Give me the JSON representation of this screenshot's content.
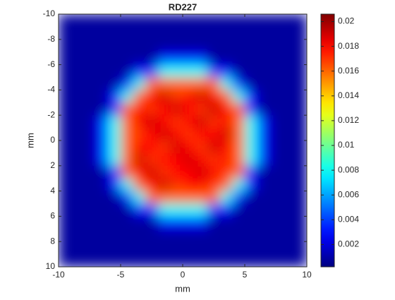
{
  "chart_data": {
    "type": "heatmap",
    "title": "RD227",
    "xlabel": "mm",
    "ylabel": "mm",
    "xlim": [
      -10,
      10
    ],
    "ylim": [
      -10,
      10
    ],
    "y_reversed": true,
    "xticks": [
      -10,
      -5,
      0,
      5,
      10
    ],
    "yticks": [
      -10,
      -8,
      -6,
      -4,
      -2,
      0,
      2,
      4,
      6,
      8,
      10
    ],
    "colormap": "jet",
    "clim": [
      0.0002,
      0.0206
    ],
    "cticks": [
      0.002,
      0.004,
      0.006,
      0.008,
      0.01,
      0.012,
      0.014,
      0.016,
      0.018,
      0.02
    ],
    "z": [
      [
        0.0008,
        0.0008,
        0.0008,
        0.0008,
        0.0008,
        0.0008,
        0.0008,
        0.0008,
        0.0008,
        0.0008,
        0.0008,
        0.0008,
        0.0008,
        0.0008,
        0.0008,
        0.0008,
        0.0008,
        0.0008,
        0.0008,
        0.0008
      ],
      [
        0.0008,
        0.0008,
        0.0008,
        0.0008,
        0.0008,
        0.0008,
        0.0008,
        0.0008,
        0.0008,
        0.0008,
        0.0008,
        0.0008,
        0.0008,
        0.0008,
        0.0008,
        0.0008,
        0.0008,
        0.0008,
        0.0008,
        0.0008
      ],
      [
        0.0008,
        0.0008,
        0.0008,
        0.0008,
        0.0008,
        0.0008,
        0.0008,
        0.0008,
        0.0008,
        0.0008,
        0.0008,
        0.0008,
        0.0008,
        0.0008,
        0.0008,
        0.0008,
        0.0008,
        0.0008,
        0.0008,
        0.0008
      ],
      [
        0.0008,
        0.0008,
        0.0008,
        0.0008,
        0.0008,
        0.0008,
        0.0008,
        0.0008,
        0.003,
        0.003,
        0.003,
        0.003,
        0.0008,
        0.0008,
        0.0008,
        0.0008,
        0.0008,
        0.0008,
        0.0008,
        0.0008
      ],
      [
        0.0008,
        0.0008,
        0.0008,
        0.0008,
        0.0008,
        0.0008,
        0.003,
        0.003,
        0.008,
        0.008,
        0.008,
        0.008,
        0.003,
        0.003,
        0.0008,
        0.0008,
        0.0008,
        0.0008,
        0.0008,
        0.0008
      ],
      [
        0.0008,
        0.0008,
        0.0008,
        0.0008,
        0.0008,
        0.003,
        0.008,
        0.016,
        0.016,
        0.016,
        0.016,
        0.016,
        0.016,
        0.008,
        0.003,
        0.0008,
        0.0008,
        0.0008,
        0.0008,
        0.0008
      ],
      [
        0.0008,
        0.0008,
        0.0008,
        0.0008,
        0.003,
        0.008,
        0.016,
        0.018,
        0.019,
        0.017,
        0.018,
        0.019,
        0.018,
        0.016,
        0.008,
        0.003,
        0.0008,
        0.0008,
        0.0008,
        0.0008
      ],
      [
        0.0008,
        0.0008,
        0.0008,
        0.0008,
        0.003,
        0.016,
        0.018,
        0.017,
        0.018,
        0.019,
        0.018,
        0.017,
        0.019,
        0.018,
        0.016,
        0.003,
        0.0008,
        0.0008,
        0.0008,
        0.0008
      ],
      [
        0.0008,
        0.0008,
        0.0008,
        0.003,
        0.008,
        0.016,
        0.018,
        0.019,
        0.018,
        0.017,
        0.018,
        0.019,
        0.017,
        0.018,
        0.016,
        0.008,
        0.003,
        0.0008,
        0.0008,
        0.0008
      ],
      [
        0.0008,
        0.0008,
        0.0008,
        0.003,
        0.008,
        0.016,
        0.017,
        0.018,
        0.019,
        0.018,
        0.017,
        0.018,
        0.018,
        0.019,
        0.016,
        0.008,
        0.003,
        0.0008,
        0.0008,
        0.0008
      ],
      [
        0.0008,
        0.0008,
        0.0008,
        0.003,
        0.008,
        0.016,
        0.018,
        0.018,
        0.017,
        0.019,
        0.018,
        0.017,
        0.019,
        0.018,
        0.016,
        0.008,
        0.003,
        0.0008,
        0.0008,
        0.0008
      ],
      [
        0.0008,
        0.0008,
        0.0008,
        0.003,
        0.008,
        0.016,
        0.019,
        0.017,
        0.018,
        0.018,
        0.019,
        0.018,
        0.017,
        0.018,
        0.016,
        0.008,
        0.003,
        0.0008,
        0.0008,
        0.0008
      ],
      [
        0.0008,
        0.0008,
        0.0008,
        0.0008,
        0.003,
        0.016,
        0.018,
        0.019,
        0.017,
        0.018,
        0.018,
        0.019,
        0.018,
        0.017,
        0.016,
        0.003,
        0.0008,
        0.0008,
        0.0008,
        0.0008
      ],
      [
        0.0008,
        0.0008,
        0.0008,
        0.0008,
        0.003,
        0.008,
        0.016,
        0.018,
        0.019,
        0.017,
        0.018,
        0.018,
        0.017,
        0.016,
        0.008,
        0.003,
        0.0008,
        0.0008,
        0.0008,
        0.0008
      ],
      [
        0.0008,
        0.0008,
        0.0008,
        0.0008,
        0.0008,
        0.003,
        0.008,
        0.016,
        0.016,
        0.016,
        0.016,
        0.016,
        0.016,
        0.008,
        0.003,
        0.0008,
        0.0008,
        0.0008,
        0.0008,
        0.0008
      ],
      [
        0.0008,
        0.0008,
        0.0008,
        0.0008,
        0.0008,
        0.0008,
        0.003,
        0.003,
        0.008,
        0.008,
        0.008,
        0.008,
        0.003,
        0.003,
        0.0008,
        0.0008,
        0.0008,
        0.0008,
        0.0008,
        0.0008
      ],
      [
        0.0008,
        0.0008,
        0.0008,
        0.0008,
        0.0008,
        0.0008,
        0.0008,
        0.0008,
        0.003,
        0.003,
        0.003,
        0.003,
        0.0008,
        0.0008,
        0.0008,
        0.0008,
        0.0008,
        0.0008,
        0.0008,
        0.0008
      ],
      [
        0.0008,
        0.0008,
        0.0008,
        0.0008,
        0.0008,
        0.0008,
        0.0008,
        0.0008,
        0.0008,
        0.0008,
        0.0008,
        0.0008,
        0.0008,
        0.0008,
        0.0008,
        0.0008,
        0.0008,
        0.0008,
        0.0008,
        0.0008
      ],
      [
        0.0008,
        0.0008,
        0.0008,
        0.0008,
        0.0008,
        0.0008,
        0.0008,
        0.0008,
        0.0008,
        0.0008,
        0.0008,
        0.0008,
        0.0008,
        0.0008,
        0.0008,
        0.0008,
        0.0008,
        0.0008,
        0.0008,
        0.0008
      ],
      [
        0.0008,
        0.0008,
        0.0008,
        0.0008,
        0.0008,
        0.0008,
        0.0008,
        0.0008,
        0.0008,
        0.0008,
        0.0008,
        0.0008,
        0.0008,
        0.0008,
        0.0008,
        0.0008,
        0.0008,
        0.0008,
        0.0008,
        0.0008
      ]
    ]
  }
}
